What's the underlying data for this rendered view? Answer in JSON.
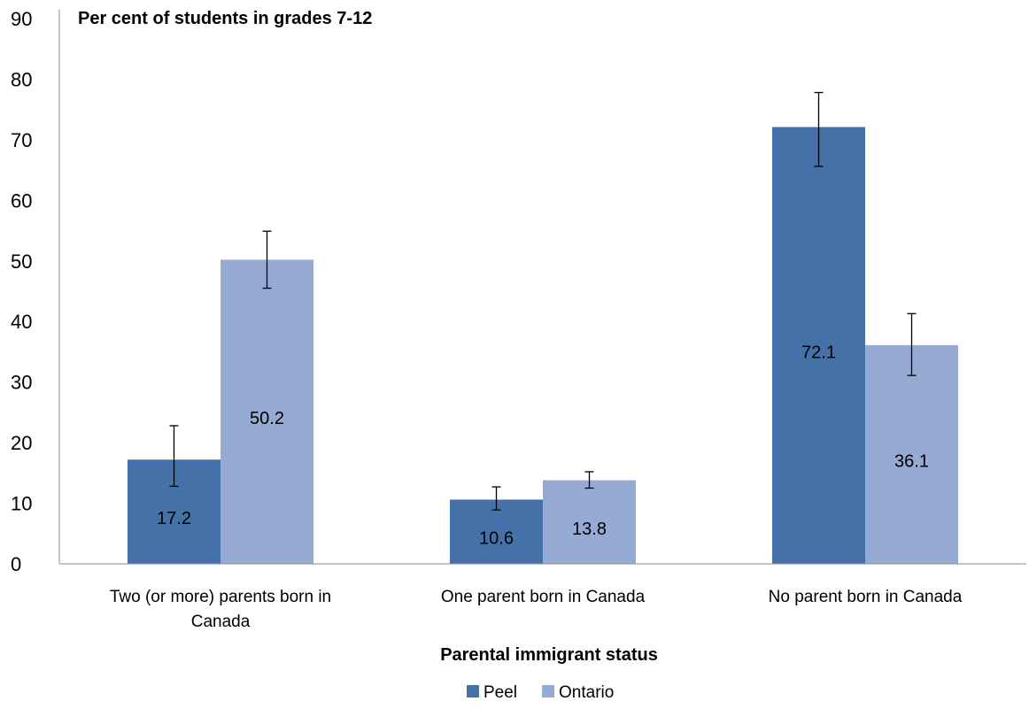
{
  "chart_data": {
    "type": "bar",
    "title": "Per cent of students in grades 7-12",
    "xlabel": "Parental immigrant status",
    "ylabel": "",
    "ylim": [
      0,
      90
    ],
    "yticks": [
      0,
      10,
      20,
      30,
      40,
      50,
      60,
      70,
      80,
      90
    ],
    "grid": false,
    "legend_position": "bottom",
    "categories": [
      "Two (or more) parents born in Canada",
      "One parent born in Canada",
      "No parent born in Canada"
    ],
    "category_label_lines": [
      [
        "Two (or more) parents born in",
        "Canada"
      ],
      [
        "One parent born in Canada"
      ],
      [
        "No parent born in Canada"
      ]
    ],
    "series": [
      {
        "name": "Peel",
        "color": "#4472a8",
        "values": [
          17.2,
          10.6,
          72.1
        ],
        "labels": [
          "17.2",
          "10.6",
          "72.1"
        ],
        "error_low": [
          12.8,
          8.9,
          65.6
        ],
        "error_high": [
          22.8,
          12.7,
          77.8
        ]
      },
      {
        "name": "Ontario",
        "color": "#95abd4",
        "values": [
          50.2,
          13.8,
          36.1
        ],
        "labels": [
          "50.2",
          "13.8",
          "36.1"
        ],
        "error_low": [
          45.5,
          12.5,
          31.1
        ],
        "error_high": [
          54.9,
          15.2,
          41.3
        ]
      }
    ]
  }
}
